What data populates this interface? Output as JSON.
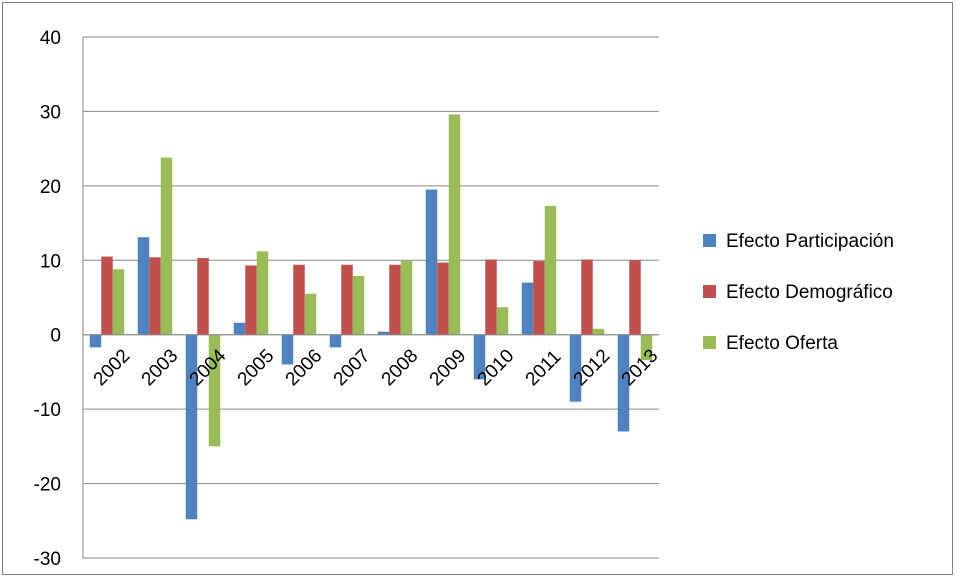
{
  "chart_data": {
    "type": "bar",
    "title": "",
    "xlabel": "",
    "ylabel": "",
    "categories": [
      "2002",
      "2003",
      "2004",
      "2005",
      "2006",
      "2007",
      "2008",
      "2009",
      "2010",
      "2011",
      "2012",
      "2013"
    ],
    "series": [
      {
        "name": "Efecto Participación",
        "color": "#4f81bd",
        "values": [
          -1.7,
          13.1,
          -24.8,
          1.6,
          -4.0,
          -1.7,
          0.4,
          19.5,
          -6.0,
          7.0,
          -9.0,
          -13.0
        ]
      },
      {
        "name": "Efecto Demográfico",
        "color": "#c0504d",
        "values": [
          10.5,
          10.4,
          10.3,
          9.3,
          9.4,
          9.4,
          9.4,
          9.7,
          10.1,
          9.9,
          10.1,
          10.0
        ]
      },
      {
        "name": "Efecto Oferta",
        "color": "#9bbb59",
        "values": [
          8.8,
          23.8,
          -15.0,
          11.2,
          5.5,
          7.9,
          9.9,
          29.6,
          3.7,
          17.3,
          0.8,
          -3.4
        ]
      }
    ],
    "ylim": [
      -30,
      40
    ],
    "y_ticks": [
      "-30",
      "-20",
      "-10",
      "0",
      "10",
      "20",
      "30",
      "40"
    ],
    "grid": true,
    "legend_position": "right"
  }
}
